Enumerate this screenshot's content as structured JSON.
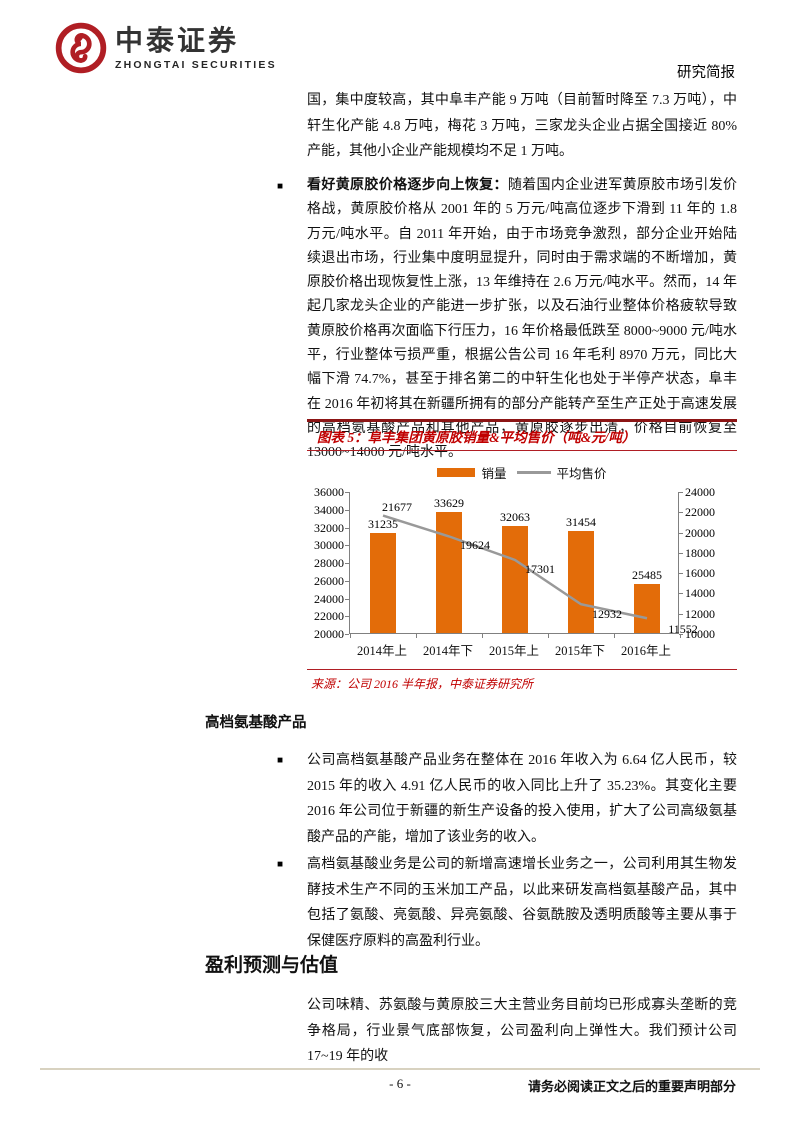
{
  "ui": {
    "bullet": "■"
  },
  "header": {
    "brand_cn": "中泰证券",
    "brand_en": "ZHONGTAI SECURITIES",
    "doc_type": "研究简报"
  },
  "body": {
    "para_continuation": "国，集中度较高，其中阜丰产能 9 万吨（目前暂时降至 7.3 万吨），中轩生化产能 4.8 万吨，梅花 3 万吨，三家龙头企业占据全国接近 80%产能，其他小企业产能规模均不足 1 万吨。",
    "bullet1_lead": "看好黄原胶价格逐步向上恢复：",
    "bullet1_text": "随着国内企业进军黄原胶市场引发价格战，黄原胶价格从 2001 年的 5 万元/吨高位逐步下滑到 11 年的 1.8 万元/吨水平。自 2011 年开始，由于市场竞争激烈，部分企业开始陆续退出市场，行业集中度明显提升，同时由于需求端的不断增加，黄原胶价格出现恢复性上涨，13 年维持在 2.6 万元/吨水平。然而，14 年起几家龙头企业的产能进一步扩张，以及石油行业整体价格疲软导致黄原胶价格再次面临下行压力，16 年价格最低跌至 8000~9000 元/吨水平，行业整体亏损严重，根据公告公司 16 年毛利 8970 万元，同比大幅下滑 74.7%，甚至于排名第二的中轩生化也处于半停产状态，阜丰在 2016 年初将其在新疆所拥有的部分产能转产至生产正处于高速发展的高档氨基酸产品和其他产品，黄原胶逐步出清，价格目前恢复至 13000~14000 元/吨水平。",
    "section1_heading": "高档氨基酸产品",
    "section1_bullet1": "公司高档氨基酸产品业务在整体在 2016 年收入为 6.64 亿人民币，较 2015 年的收入 4.91 亿人民币的收入同比上升了 35.23%。其变化主要 2016 年公司位于新疆的新生产设备的投入使用，扩大了公司高级氨基酸产品的产能，增加了该业务的收入。",
    "section1_bullet2": "高档氨基酸业务是公司的新增高速增长业务之一，公司利用其生物发酵技术生产不同的玉米加工产品，以此来研发高档氨基酸产品，其中包括了氨酸、亮氨酸、异亮氨酸、谷氨酰胺及透明质酸等主要从事于保健医疗原料的高盈利行业。",
    "section2_heading": "盈利预测与估值",
    "section2_para": "公司味精、苏氨酸与黄原胶三大主营业务目前均已形成寡头垄断的竞争格局，行业景气底部恢复，公司盈利向上弹性大。我们预计公司 17~19 年的收"
  },
  "figure": {
    "source": "来源：公司 2016 半年报，中泰证券研究所"
  },
  "chart_data": {
    "type": "bar",
    "title": "图表 5：阜丰集团黄原胶销量&平均售价（吨&元/吨）",
    "categories": [
      "2014年上",
      "2014年下",
      "2015年上",
      "2015年下",
      "2016年上"
    ],
    "series": [
      {
        "name": "销量",
        "type": "bar",
        "axis": "left",
        "values": [
          31235,
          33629,
          32063,
          31454,
          25485
        ]
      },
      {
        "name": "平均售价",
        "type": "line",
        "axis": "right",
        "values": [
          21677,
          19624,
          17301,
          12932,
          11552
        ]
      }
    ],
    "left_axis": {
      "min": 20000,
      "max": 36000,
      "step": 2000
    },
    "right_axis": {
      "min": 10000,
      "max": 24000,
      "step": 2000
    },
    "legend_position": "top",
    "grid": false,
    "colors": {
      "bar": "#E36C09",
      "line": "#999999"
    }
  },
  "footer": {
    "page_number": "- 6 -",
    "disclaimer": "请务必阅读正文之后的重要声明部分"
  }
}
